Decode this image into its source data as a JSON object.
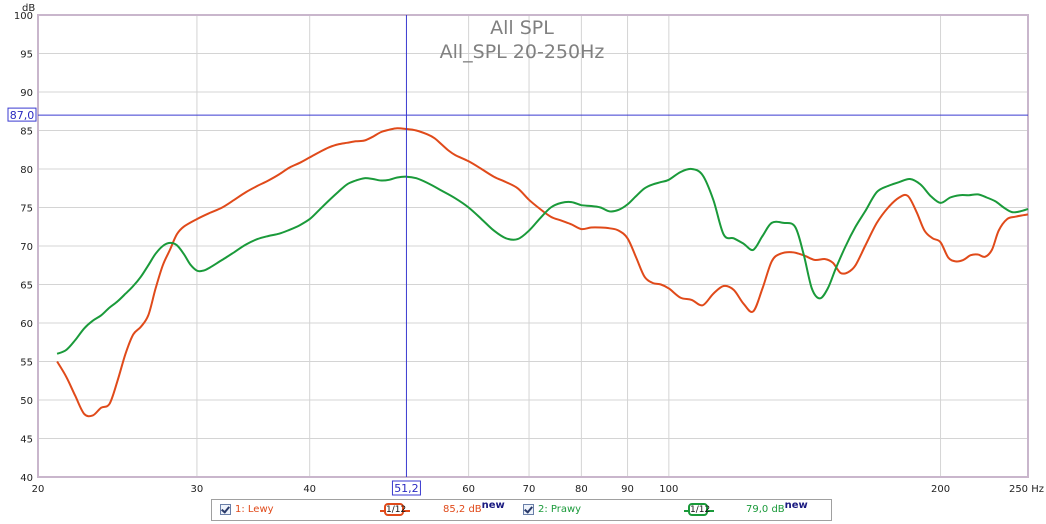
{
  "chart_data": {
    "type": "line",
    "title": "All SPL",
    "subtitle": "All_SPL 20-250Hz",
    "ylabel": "dB",
    "xlabel": "",
    "xunit": "Hz",
    "xscale": "log",
    "xlim": [
      20,
      250
    ],
    "ylim": [
      40,
      100
    ],
    "xticks": [
      {
        "v": 20,
        "label": "20"
      },
      {
        "v": 30,
        "label": "30"
      },
      {
        "v": 40,
        "label": "40"
      },
      {
        "v": 60,
        "label": "60"
      },
      {
        "v": 70,
        "label": "70"
      },
      {
        "v": 80,
        "label": "80"
      },
      {
        "v": 90,
        "label": "90"
      },
      {
        "v": 100,
        "label": "100"
      },
      {
        "v": 200,
        "label": "200"
      },
      {
        "v": 250,
        "label": "250 Hz"
      }
    ],
    "yticks": [
      40,
      45,
      50,
      55,
      60,
      65,
      70,
      75,
      80,
      85,
      90,
      95,
      100
    ],
    "grid": true,
    "cursor": {
      "x": 51.2,
      "x_label": "51,2",
      "y": 87.0,
      "y_label": "87,0"
    },
    "colors": {
      "background": "#ffffff",
      "grid": "#d4d4d4",
      "frame": "#c0a8c8",
      "cursor": "#3a3ad0"
    },
    "series": [
      {
        "name": "1: Lewy",
        "color": "#e04a1a",
        "smoothing": "1/12",
        "value_label": "85,2 dB",
        "points": [
          [
            21,
            55.0
          ],
          [
            21.5,
            53.0
          ],
          [
            22,
            50.5
          ],
          [
            22.5,
            48.2
          ],
          [
            23,
            48.0
          ],
          [
            23.5,
            49.0
          ],
          [
            24,
            49.5
          ],
          [
            24.5,
            52.5
          ],
          [
            25,
            56.0
          ],
          [
            25.5,
            58.5
          ],
          [
            26,
            59.5
          ],
          [
            26.5,
            61.0
          ],
          [
            27,
            64.5
          ],
          [
            27.5,
            67.5
          ],
          [
            28,
            69.5
          ],
          [
            28.5,
            71.5
          ],
          [
            29,
            72.5
          ],
          [
            30,
            73.5
          ],
          [
            31,
            74.3
          ],
          [
            32,
            75.0
          ],
          [
            33,
            76.0
          ],
          [
            34,
            77.0
          ],
          [
            35,
            77.8
          ],
          [
            36,
            78.5
          ],
          [
            37,
            79.3
          ],
          [
            38,
            80.2
          ],
          [
            39,
            80.8
          ],
          [
            40,
            81.5
          ],
          [
            41,
            82.2
          ],
          [
            42,
            82.8
          ],
          [
            43,
            83.2
          ],
          [
            44,
            83.4
          ],
          [
            45,
            83.6
          ],
          [
            46,
            83.7
          ],
          [
            47,
            84.2
          ],
          [
            48,
            84.8
          ],
          [
            49,
            85.1
          ],
          [
            50,
            85.3
          ],
          [
            51.2,
            85.2
          ],
          [
            52.5,
            85.0
          ],
          [
            54,
            84.5
          ],
          [
            55,
            84.0
          ],
          [
            56,
            83.2
          ],
          [
            57,
            82.4
          ],
          [
            58,
            81.8
          ],
          [
            60,
            81.0
          ],
          [
            62,
            80.0
          ],
          [
            64,
            79.0
          ],
          [
            66,
            78.3
          ],
          [
            68,
            77.5
          ],
          [
            70,
            76.0
          ],
          [
            72,
            74.8
          ],
          [
            74,
            73.8
          ],
          [
            76,
            73.3
          ],
          [
            78,
            72.8
          ],
          [
            80,
            72.2
          ],
          [
            82,
            72.4
          ],
          [
            84,
            72.4
          ],
          [
            86,
            72.3
          ],
          [
            88,
            72.0
          ],
          [
            90,
            71.0
          ],
          [
            92,
            68.5
          ],
          [
            94,
            66.0
          ],
          [
            96,
            65.2
          ],
          [
            98,
            65.0
          ],
          [
            100,
            64.5
          ],
          [
            103,
            63.3
          ],
          [
            106,
            63.0
          ],
          [
            109,
            62.3
          ],
          [
            112,
            63.8
          ],
          [
            115,
            64.8
          ],
          [
            118,
            64.3
          ],
          [
            121,
            62.5
          ],
          [
            124,
            61.5
          ],
          [
            127,
            64.5
          ],
          [
            130,
            68.0
          ],
          [
            133,
            69.0
          ],
          [
            137,
            69.2
          ],
          [
            141,
            68.8
          ],
          [
            145,
            68.2
          ],
          [
            149,
            68.3
          ],
          [
            152,
            67.8
          ],
          [
            155,
            66.5
          ],
          [
            158,
            66.6
          ],
          [
            161,
            67.5
          ],
          [
            165,
            70.0
          ],
          [
            170,
            73.0
          ],
          [
            175,
            75.0
          ],
          [
            180,
            76.3
          ],
          [
            184,
            76.5
          ],
          [
            188,
            74.5
          ],
          [
            192,
            72.0
          ],
          [
            196,
            71.0
          ],
          [
            200,
            70.5
          ],
          [
            204,
            68.5
          ],
          [
            208,
            68.0
          ],
          [
            212,
            68.2
          ],
          [
            216,
            68.8
          ],
          [
            220,
            68.9
          ],
          [
            224,
            68.6
          ],
          [
            228,
            69.5
          ],
          [
            232,
            72.0
          ],
          [
            237,
            73.5
          ],
          [
            242,
            73.8
          ],
          [
            247,
            74.0
          ],
          [
            250,
            74.1
          ]
        ]
      },
      {
        "name": "2: Prawy",
        "color": "#1a9a3a",
        "smoothing": "1/12",
        "value_label": "79,0 dB",
        "points": [
          [
            21,
            56.0
          ],
          [
            21.5,
            56.5
          ],
          [
            22,
            57.8
          ],
          [
            22.5,
            59.3
          ],
          [
            23,
            60.3
          ],
          [
            23.5,
            61.0
          ],
          [
            24,
            62.0
          ],
          [
            24.5,
            62.8
          ],
          [
            25,
            63.8
          ],
          [
            25.5,
            64.8
          ],
          [
            26,
            66.0
          ],
          [
            26.5,
            67.5
          ],
          [
            27,
            69.0
          ],
          [
            27.5,
            70.0
          ],
          [
            28,
            70.4
          ],
          [
            28.5,
            70.1
          ],
          [
            29,
            69.0
          ],
          [
            29.5,
            67.6
          ],
          [
            30,
            66.8
          ],
          [
            30.5,
            66.8
          ],
          [
            31,
            67.2
          ],
          [
            32,
            68.2
          ],
          [
            33,
            69.2
          ],
          [
            34,
            70.2
          ],
          [
            35,
            70.9
          ],
          [
            36,
            71.3
          ],
          [
            37,
            71.6
          ],
          [
            38,
            72.1
          ],
          [
            39,
            72.7
          ],
          [
            40,
            73.5
          ],
          [
            41,
            74.7
          ],
          [
            42,
            75.9
          ],
          [
            43,
            77.0
          ],
          [
            44,
            78.0
          ],
          [
            45,
            78.5
          ],
          [
            46,
            78.8
          ],
          [
            47,
            78.7
          ],
          [
            48,
            78.5
          ],
          [
            49,
            78.6
          ],
          [
            50,
            78.9
          ],
          [
            51.2,
            79.0
          ],
          [
            52.5,
            78.8
          ],
          [
            54,
            78.2
          ],
          [
            56,
            77.2
          ],
          [
            58,
            76.2
          ],
          [
            60,
            75.0
          ],
          [
            62,
            73.5
          ],
          [
            64,
            72.0
          ],
          [
            66,
            71.0
          ],
          [
            68,
            70.9
          ],
          [
            70,
            72.0
          ],
          [
            72,
            73.6
          ],
          [
            74,
            75.0
          ],
          [
            76,
            75.6
          ],
          [
            78,
            75.7
          ],
          [
            80,
            75.3
          ],
          [
            82,
            75.2
          ],
          [
            84,
            75.0
          ],
          [
            86,
            74.5
          ],
          [
            88,
            74.7
          ],
          [
            90,
            75.4
          ],
          [
            92,
            76.5
          ],
          [
            94,
            77.5
          ],
          [
            96,
            78.0
          ],
          [
            98,
            78.3
          ],
          [
            100,
            78.6
          ],
          [
            103,
            79.6
          ],
          [
            106,
            80.0
          ],
          [
            109,
            79.2
          ],
          [
            112,
            76.0
          ],
          [
            115,
            71.5
          ],
          [
            118,
            71.0
          ],
          [
            121,
            70.3
          ],
          [
            124,
            69.5
          ],
          [
            127,
            71.3
          ],
          [
            130,
            73.0
          ],
          [
            134,
            73.0
          ],
          [
            138,
            72.5
          ],
          [
            141,
            69.0
          ],
          [
            144,
            64.5
          ],
          [
            147,
            63.2
          ],
          [
            150,
            64.5
          ],
          [
            153,
            67.0
          ],
          [
            157,
            70.0
          ],
          [
            161,
            72.5
          ],
          [
            165,
            74.5
          ],
          [
            170,
            77.0
          ],
          [
            175,
            77.8
          ],
          [
            180,
            78.3
          ],
          [
            185,
            78.7
          ],
          [
            190,
            78.0
          ],
          [
            195,
            76.5
          ],
          [
            200,
            75.6
          ],
          [
            205,
            76.3
          ],
          [
            210,
            76.6
          ],
          [
            215,
            76.6
          ],
          [
            220,
            76.7
          ],
          [
            225,
            76.3
          ],
          [
            230,
            75.8
          ],
          [
            235,
            75.0
          ],
          [
            240,
            74.4
          ],
          [
            245,
            74.5
          ],
          [
            250,
            74.8
          ]
        ]
      }
    ]
  },
  "legend": {
    "series1": {
      "checkbox_checked": true,
      "label": "1: Lewy",
      "smoothing": "1/12",
      "value": "85,2 dB",
      "new_tag": "new"
    },
    "series2": {
      "checkbox_checked": true,
      "label": "2: Prawy",
      "smoothing": "1/12",
      "value": "79,0 dB",
      "new_tag": "new"
    }
  }
}
